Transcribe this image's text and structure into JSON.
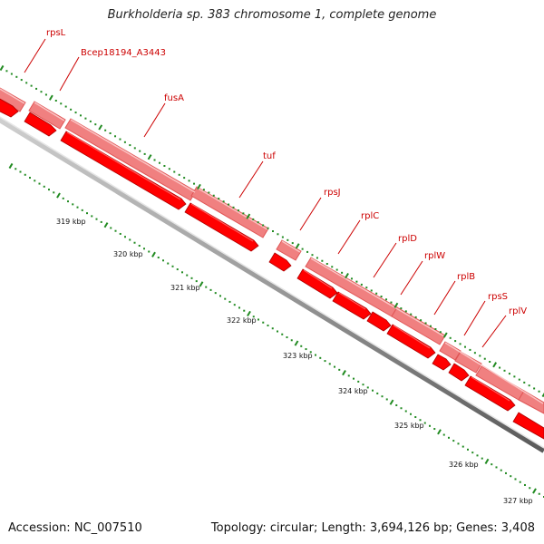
{
  "title": "Burkholderia sp. 383 chromosome 1, complete genome",
  "footer": {
    "accession": "Accession: NC_007510",
    "topology": "Topology: circular; Length: 3,694,126 bp; Genes: 3,408"
  },
  "colors": {
    "gene_light": "#f08080",
    "gene_dark": "#ff0000",
    "backbone": "#999999",
    "tick": "#228b22",
    "label": "#cc0000"
  },
  "genes": [
    {
      "name": "rpsL"
    },
    {
      "name": "Bcep18194_A3443"
    },
    {
      "name": "fusA"
    },
    {
      "name": "tuf"
    },
    {
      "name": "rpsJ"
    },
    {
      "name": "rplC"
    },
    {
      "name": "rplD"
    },
    {
      "name": "rplW"
    },
    {
      "name": "rplB"
    },
    {
      "name": "rpsS"
    },
    {
      "name": "rplV"
    }
  ],
  "scale_labels": [
    "319 kbp",
    "320 kbp",
    "321 kbp",
    "322 kbp",
    "323 kbp",
    "324 kbp",
    "325 kbp",
    "326 kbp",
    "327 kbp"
  ]
}
